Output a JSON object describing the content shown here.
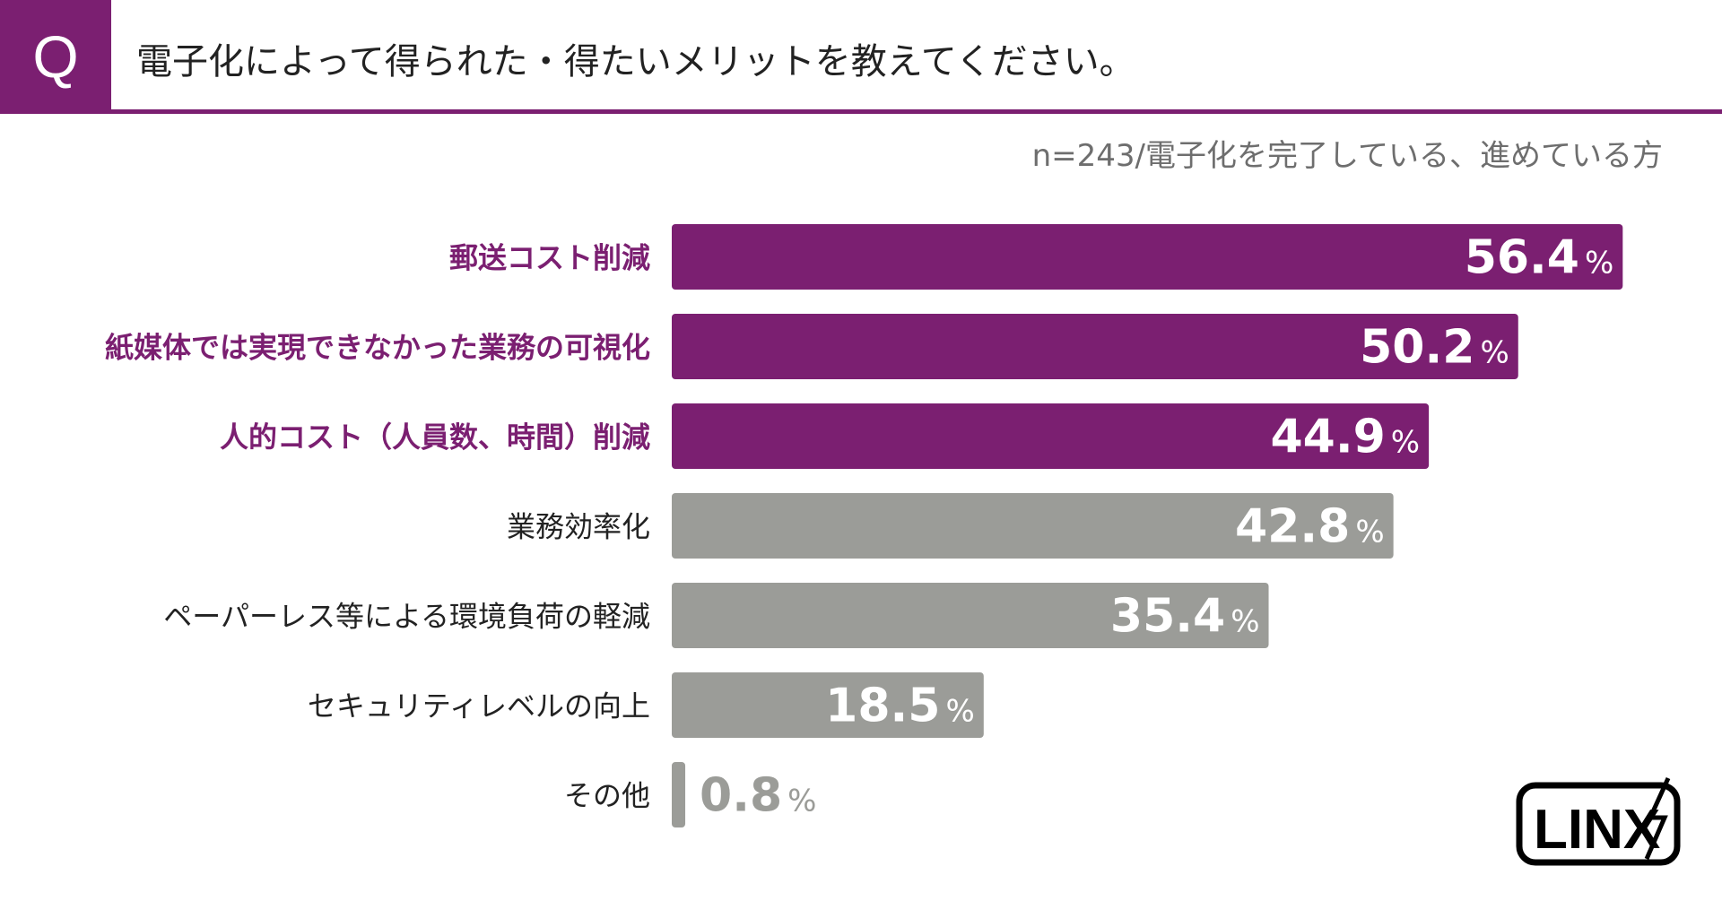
{
  "header": {
    "badge": "Q",
    "question": "電子化によって得られた・得たいメリットを教えてください。",
    "sample_note": "n=243/電子化を完了している、進めている方"
  },
  "colors": {
    "accent": "#7b1f71",
    "gray_bar": "#9b9c98",
    "highlight_label": "#7b1f71",
    "normal_label": "#222222"
  },
  "logo": {
    "text": "LINX"
  },
  "chart_data": {
    "type": "bar",
    "orientation": "horizontal",
    "title": "",
    "xlabel": "",
    "ylabel": "",
    "unit": "%",
    "xlim": [
      0,
      60
    ],
    "categories": [
      "郵送コスト削減",
      "紙媒体では実現できなかった業務の可視化",
      "人的コスト（人員数、時間）削減",
      "業務効率化",
      "ペーパーレス等による環境負荷の軽減",
      "セキュリティレベルの向上",
      "その他"
    ],
    "values": [
      56.4,
      50.2,
      44.9,
      42.8,
      35.4,
      18.5,
      0.8
    ],
    "value_labels": [
      "56.4",
      "50.2",
      "44.9",
      "42.8",
      "35.4",
      "18.5",
      "0.8"
    ],
    "highlighted": [
      true,
      true,
      true,
      false,
      false,
      false,
      false
    ]
  }
}
